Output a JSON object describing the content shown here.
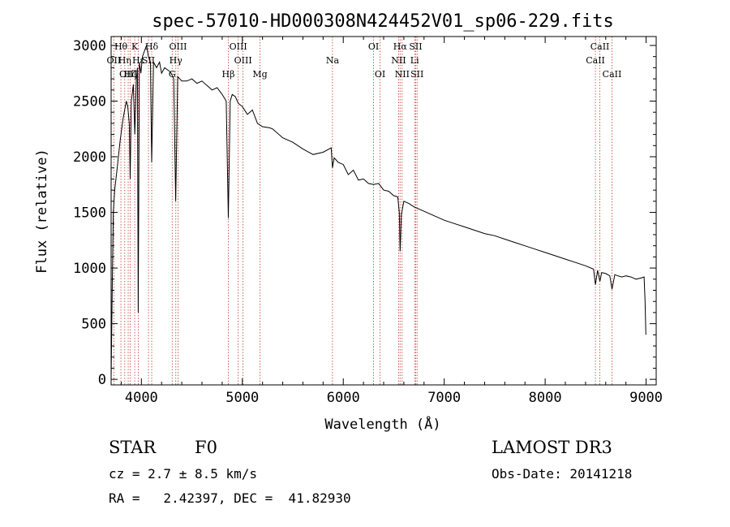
{
  "chart_data": {
    "type": "line",
    "title": "spec-57010-HD000308N424452V01_sp06-229.fits",
    "xlabel": "Wavelength (Å)",
    "ylabel": "Flux (relative)",
    "xlim": [
      3700,
      9100
    ],
    "ylim": [
      -50,
      3080
    ],
    "x_ticks": [
      4000,
      5000,
      6000,
      7000,
      8000,
      9000
    ],
    "x_tick_labels": [
      "4000",
      "5000",
      "6000",
      "7000",
      "8000",
      "9000"
    ],
    "y_ticks": [
      0,
      500,
      1000,
      1500,
      2000,
      2500,
      3000
    ],
    "y_tick_labels": [
      "0",
      "500",
      "1000",
      "1500",
      "2000",
      "2500",
      "3000"
    ],
    "grid": false,
    "line_color": "#000000",
    "marker_color": "#c0392b",
    "series": [
      {
        "name": "flux",
        "x": [
          3700,
          3712,
          3722,
          3735,
          3760,
          3790,
          3820,
          3850,
          3865,
          3880,
          3889,
          3900,
          3920,
          3935,
          3950,
          3960,
          3968,
          3980,
          3995,
          4010,
          4030,
          4050,
          4070,
          4090,
          4102,
          4120,
          4150,
          4180,
          4200,
          4230,
          4260,
          4290,
          4320,
          4340,
          4360,
          4380,
          4400,
          4450,
          4500,
          4550,
          4600,
          4650,
          4700,
          4750,
          4800,
          4840,
          4861,
          4880,
          4900,
          4930,
          4960,
          5000,
          5050,
          5100,
          5150,
          5200,
          5270,
          5300,
          5400,
          5500,
          5600,
          5700,
          5800,
          5880,
          5893,
          5910,
          5950,
          6000,
          6050,
          6100,
          6150,
          6200,
          6250,
          6300,
          6350,
          6400,
          6450,
          6500,
          6540,
          6555,
          6563,
          6575,
          6600,
          6650,
          6700,
          6750,
          6800,
          6900,
          7000,
          7100,
          7200,
          7300,
          7400,
          7500,
          7600,
          7700,
          7800,
          7900,
          8000,
          8100,
          8200,
          8300,
          8400,
          8480,
          8498,
          8520,
          8542,
          8560,
          8600,
          8640,
          8662,
          8690,
          8720,
          8760,
          8800,
          8850,
          8900,
          8950,
          8980,
          8990,
          8998
        ],
        "y": [
          0,
          900,
          1500,
          1700,
          1900,
          2150,
          2350,
          2500,
          2450,
          2300,
          1800,
          2500,
          2650,
          2200,
          2700,
          2800,
          600,
          2850,
          2750,
          2900,
          2950,
          3000,
          2900,
          2850,
          1950,
          2850,
          2800,
          2850,
          2750,
          2800,
          2780,
          2760,
          2700,
          1600,
          2720,
          2700,
          2680,
          2680,
          2700,
          2660,
          2680,
          2640,
          2600,
          2620,
          2560,
          2500,
          1450,
          2500,
          2560,
          2540,
          2480,
          2450,
          2380,
          2420,
          2300,
          2270,
          2260,
          2250,
          2170,
          2130,
          2070,
          2020,
          2040,
          2080,
          1900,
          1990,
          1950,
          1930,
          1840,
          1880,
          1790,
          1800,
          1760,
          1750,
          1760,
          1700,
          1690,
          1650,
          1640,
          1500,
          1150,
          1480,
          1600,
          1580,
          1550,
          1530,
          1510,
          1470,
          1430,
          1400,
          1370,
          1340,
          1310,
          1290,
          1260,
          1230,
          1200,
          1170,
          1140,
          1110,
          1080,
          1050,
          1020,
          990,
          850,
          980,
          880,
          960,
          950,
          930,
          810,
          940,
          930,
          920,
          930,
          920,
          900,
          910,
          920,
          700,
          400
        ]
      }
    ],
    "annotations": [
      {
        "label": "Hθ",
        "x": 3797,
        "row": 1
      },
      {
        "label": "K",
        "x": 3934,
        "row": 1
      },
      {
        "label": "Hδ",
        "x": 4102,
        "row": 1
      },
      {
        "label": "OIII",
        "x": 4363,
        "row": 1
      },
      {
        "label": "OIII",
        "x": 4959,
        "row": 1
      },
      {
        "label": "OI",
        "x": 6300,
        "row": 1
      },
      {
        "label": "Hα",
        "x": 6563,
        "row": 1
      },
      {
        "label": "SII",
        "x": 6717,
        "row": 1
      },
      {
        "label": "CaII",
        "x": 8542,
        "row": 1
      },
      {
        "label": "OII",
        "x": 3727,
        "row": 2
      },
      {
        "label": "Hη",
        "x": 3835,
        "row": 2
      },
      {
        "label": "Hε",
        "x": 3970,
        "row": 2
      },
      {
        "label": "SII",
        "x": 4070,
        "row": 2
      },
      {
        "label": "Hγ",
        "x": 4341,
        "row": 2
      },
      {
        "label": "OIII",
        "x": 5007,
        "row": 2
      },
      {
        "label": "Na",
        "x": 5893,
        "row": 2
      },
      {
        "label": "NII",
        "x": 6548,
        "row": 2
      },
      {
        "label": "Li",
        "x": 6707,
        "row": 2
      },
      {
        "label": "CaII",
        "x": 8498,
        "row": 2
      },
      {
        "label": "OIII",
        "x": 3869,
        "row": 3
      },
      {
        "label": "Hζ",
        "x": 3889,
        "row": 3
      },
      {
        "label": "G",
        "x": 4305,
        "row": 3
      },
      {
        "label": "Hβ",
        "x": 4861,
        "row": 3
      },
      {
        "label": "Mg",
        "x": 5175,
        "row": 3
      },
      {
        "label": "OI",
        "x": 6364,
        "row": 3
      },
      {
        "label": "NII",
        "x": 6583,
        "row": 3
      },
      {
        "label": "SII",
        "x": 6731,
        "row": 3
      },
      {
        "label": "CaII",
        "x": 8662,
        "row": 3
      }
    ],
    "marker_lines": [
      3727,
      3797,
      3835,
      3869,
      3889,
      3934,
      3970,
      4070,
      4102,
      4305,
      4341,
      4363,
      4861,
      4959,
      5007,
      5175,
      5893,
      6300,
      6364,
      6548,
      6563,
      6583,
      6707,
      6717,
      6731,
      8498,
      8542,
      8662
    ]
  },
  "info": {
    "object_type": "STAR",
    "subclass": "F0",
    "survey": "LAMOST DR3",
    "cz": "cz = 2.7 ± 8.5 km/s",
    "obs_date": "Obs-Date: 20141218",
    "coords": "RA =   2.42397, DEC =  41.82930"
  }
}
